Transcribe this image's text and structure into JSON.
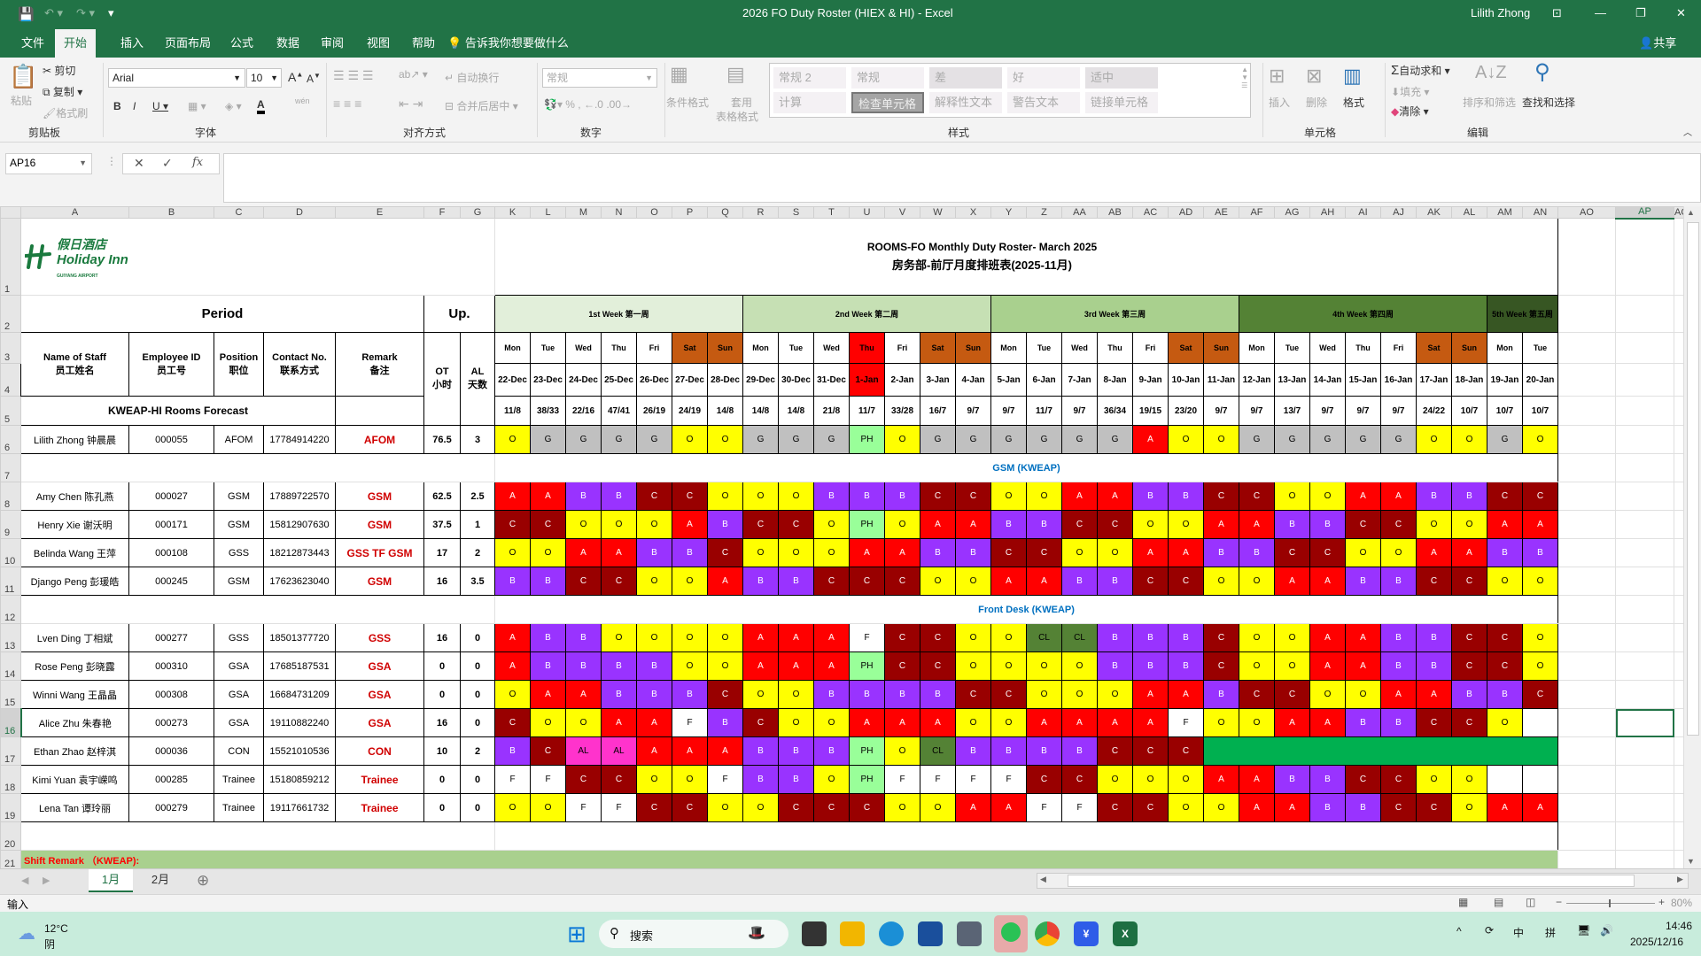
{
  "app": {
    "title": "2026 FO Duty Roster (HIEX & HI)  -  Excel",
    "user": "Lilith Zhong",
    "share": "共享",
    "tell_me": "告诉我你想要做什么",
    "tabs": [
      "文件",
      "开始",
      "插入",
      "页面布局",
      "公式",
      "数据",
      "审阅",
      "视图",
      "帮助"
    ],
    "active_tab": "开始"
  },
  "ribbon": {
    "clipboard": {
      "paste": "粘贴",
      "cut": "剪切",
      "copy": "复制",
      "format_painter": "格式刷",
      "label": "剪贴板"
    },
    "font": {
      "name": "Arial",
      "size": "10",
      "label": "字体",
      "phonetic": "wén"
    },
    "alignment": {
      "wrap": "自动换行",
      "merge": "合并后居中",
      "label": "对齐方式"
    },
    "number": {
      "format": "常规",
      "label": "数字"
    },
    "styles": {
      "conditional": "条件格式",
      "table_1": "套用",
      "table_2": "表格格式",
      "label": "样式",
      "gallery": [
        "常规 2",
        "常规",
        "差",
        "好",
        "适中",
        "计算",
        "检查单元格",
        "解释性文本",
        "警告文本",
        "链接单元格"
      ]
    },
    "cells": {
      "insert": "插入",
      "delete": "删除",
      "format": "格式",
      "label": "单元格"
    },
    "editing": {
      "autosum": "自动求和",
      "fill": "填充",
      "clear": "清除",
      "sort": "排序和筛选",
      "find": "查找和选择",
      "label": "编辑"
    }
  },
  "formula": {
    "name_box": "AP16",
    "value": "",
    "fx": "fx"
  },
  "columns": [
    "A",
    "B",
    "C",
    "D",
    "E",
    "F",
    "G",
    "K",
    "L",
    "M",
    "N",
    "O",
    "P",
    "Q",
    "R",
    "S",
    "T",
    "U",
    "V",
    "W",
    "X",
    "Y",
    "Z",
    "AA",
    "AB",
    "AC",
    "AD",
    "AE",
    "AF",
    "AG",
    "AH",
    "AI",
    "AJ",
    "AK",
    "AL",
    "AM",
    "AN",
    "AO",
    "AP",
    "AC"
  ],
  "selected_column": "AP",
  "selected_row": 16,
  "row_headers": [
    "1",
    "2",
    "3",
    "4",
    "5",
    "6",
    "7",
    "8",
    "9",
    "10",
    "11",
    "12",
    "13",
    "14",
    "15",
    "16",
    "17",
    "18",
    "19",
    "20",
    "21"
  ],
  "sheet": {
    "logo": {
      "cn": "假日酒店",
      "en": "Holiday Inn",
      "sub": "GUIYANG AIRPORT",
      "color": "#1a7a3e"
    },
    "title_1": "ROOMS-FO Monthly Duty Roster- March 2025",
    "title_2": "房务部-前厅月度排班表(2025-11月)",
    "period": "Period",
    "up": "Up.",
    "headers": {
      "name_en": "Name of Staff",
      "name_cn": "员工姓名",
      "id_en": "Employee ID",
      "id_cn": "员工号",
      "pos_en": "Position",
      "pos_cn": "职位",
      "contact_en": "Contact No.",
      "contact_cn": "联系方式",
      "remark_en": "Remark",
      "remark_cn": "备注",
      "ot_en": "OT",
      "ot_cn": "小时",
      "al_en": "AL",
      "al_cn": "天数"
    },
    "forecast_label": "KWEAP-HI Rooms Forecast",
    "weeks": [
      {
        "label": "1st Week 第一周",
        "days": 7,
        "color": "#e2efda"
      },
      {
        "label": "2nd Week 第二周",
        "days": 7,
        "color": "#c6e0b4"
      },
      {
        "label": "3rd Week 第三周",
        "days": 7,
        "color": "#a9d08e"
      },
      {
        "label": "4th Week 第四周",
        "days": 7,
        "color": "#548235"
      },
      {
        "label": "5th Week 第五周",
        "days": 2,
        "color": "#375623"
      }
    ],
    "days": [
      "Mon",
      "Tue",
      "Wed",
      "Thu",
      "Fri",
      "Sat",
      "Sun",
      "Mon",
      "Tue",
      "Wed",
      "Thu",
      "Fri",
      "Sat",
      "Sun",
      "Mon",
      "Tue",
      "Wed",
      "Thu",
      "Fri",
      "Sat",
      "Sun",
      "Mon",
      "Tue",
      "Wed",
      "Thu",
      "Fri",
      "Sat",
      "Sun",
      "Mon",
      "Tue"
    ],
    "dates": [
      "22-Dec",
      "23-Dec",
      "24-Dec",
      "25-Dec",
      "26-Dec",
      "27-Dec",
      "28-Dec",
      "29-Dec",
      "30-Dec",
      "31-Dec",
      "1-Jan",
      "2-Jan",
      "3-Jan",
      "4-Jan",
      "5-Jan",
      "6-Jan",
      "7-Jan",
      "8-Jan",
      "9-Jan",
      "10-Jan",
      "11-Jan",
      "12-Jan",
      "13-Jan",
      "14-Jan",
      "15-Jan",
      "16-Jan",
      "17-Jan",
      "18-Jan",
      "19-Jan",
      "20-Jan"
    ],
    "holiday_date": "1-Jan",
    "weekend_color": "#c55a11",
    "holiday_color": "#ff0000",
    "forecast": [
      "11/8",
      "38/33",
      "22/16",
      "47/41",
      "26/19",
      "24/19",
      "14/8",
      "14/8",
      "14/8",
      "21/8",
      "11/7",
      "33/28",
      "16/7",
      "9/7",
      "9/7",
      "11/7",
      "9/7",
      "36/34",
      "19/15",
      "23/20",
      "9/7",
      "9/7",
      "13/7",
      "9/7",
      "9/7",
      "9/7",
      "24/22",
      "10/7",
      "10/7",
      "10/7"
    ],
    "sections": {
      "gsm": "GSM (KWEAP)",
      "front_desk": "Front Desk (KWEAP)"
    },
    "staff": [
      {
        "name": "Lilith Zhong 钟晨晨",
        "id": "000055",
        "pos": "AFOM",
        "contact": "17784914220",
        "remark": "AFOM",
        "ot": "76.5",
        "al": "3",
        "shifts": [
          "O",
          "G",
          "G",
          "G",
          "G",
          "O",
          "O",
          "G",
          "G",
          "G",
          "PH",
          "O",
          "G",
          "G",
          "G",
          "G",
          "G",
          "G",
          "A",
          "O",
          "O",
          "G",
          "G",
          "G",
          "G",
          "G",
          "O",
          "O",
          "G",
          "O"
        ]
      },
      {
        "name": "Amy Chen 陈孔燕",
        "id": "000027",
        "pos": "GSM",
        "contact": "17889722570",
        "remark": "GSM",
        "ot": "62.5",
        "al": "2.5",
        "shifts": [
          "A",
          "A",
          "B",
          "B",
          "C",
          "C",
          "O",
          "O",
          "O",
          "B",
          "B",
          "B",
          "C",
          "C",
          "O",
          "O",
          "A",
          "A",
          "B",
          "B",
          "C",
          "C",
          "O",
          "O",
          "A",
          "A",
          "B",
          "B",
          "C",
          "C"
        ]
      },
      {
        "name": "Henry Xie 谢沃明",
        "id": "000171",
        "pos": "GSM",
        "contact": "15812907630",
        "remark": "GSM",
        "ot": "37.5",
        "al": "1",
        "shifts": [
          "C",
          "C",
          "O",
          "O",
          "O",
          "A",
          "B",
          "C",
          "C",
          "O",
          "PH",
          "O",
          "A",
          "A",
          "B",
          "B",
          "C",
          "C",
          "O",
          "O",
          "A",
          "A",
          "B",
          "B",
          "C",
          "C",
          "O",
          "O",
          "A",
          "A"
        ]
      },
      {
        "name": "Belinda Wang 王萍",
        "id": "000108",
        "pos": "GSS",
        "contact": "18212873443",
        "remark": "GSS TF GSM",
        "ot": "17",
        "al": "2",
        "shifts": [
          "O",
          "O",
          "A",
          "A",
          "B",
          "B",
          "C",
          "O",
          "O",
          "O",
          "A",
          "A",
          "B",
          "B",
          "C",
          "C",
          "O",
          "O",
          "A",
          "A",
          "B",
          "B",
          "C",
          "C",
          "O",
          "O",
          "A",
          "A",
          "B",
          "B"
        ]
      },
      {
        "name": "Django Peng 彭瑗皓",
        "id": "000245",
        "pos": "GSM",
        "contact": "17623623040",
        "remark": "GSM",
        "ot": "16",
        "al": "3.5",
        "shifts": [
          "B",
          "B",
          "C",
          "C",
          "O",
          "O",
          "A",
          "B",
          "B",
          "C",
          "C",
          "C",
          "O",
          "O",
          "A",
          "A",
          "B",
          "B",
          "C",
          "C",
          "O",
          "O",
          "A",
          "A",
          "B",
          "B",
          "C",
          "C",
          "O",
          "O"
        ]
      },
      {
        "name": "Lven Ding 丁相斌",
        "id": "000277",
        "pos": "GSS",
        "contact": "18501377720",
        "remark": "GSS",
        "ot": "16",
        "al": "0",
        "shifts": [
          "A",
          "B",
          "B",
          "O",
          "O",
          "O",
          "O",
          "A",
          "A",
          "A",
          "F",
          "C",
          "C",
          "O",
          "O",
          "CL",
          "CL",
          "B",
          "B",
          "B",
          "C",
          "O",
          "O",
          "A",
          "A",
          "B",
          "B",
          "C",
          "C",
          "O"
        ]
      },
      {
        "name": "Rose Peng 彭晓露",
        "id": "000310",
        "pos": "GSA",
        "contact": "17685187531",
        "remark": "GSA",
        "ot": "0",
        "al": "0",
        "shifts": [
          "A",
          "B",
          "B",
          "B",
          "B",
          "O",
          "O",
          "A",
          "A",
          "A",
          "PH",
          "C",
          "C",
          "O",
          "O",
          "O",
          "O",
          "B",
          "B",
          "B",
          "C",
          "O",
          "O",
          "A",
          "A",
          "B",
          "B",
          "C",
          "C",
          "O"
        ]
      },
      {
        "name": "Winni Wang 王晶晶",
        "id": "000308",
        "pos": "GSA",
        "contact": "16684731209",
        "remark": "GSA",
        "ot": "0",
        "al": "0",
        "shifts": [
          "O",
          "A",
          "A",
          "B",
          "B",
          "B",
          "C",
          "O",
          "O",
          "B",
          "B",
          "B",
          "B",
          "C",
          "C",
          "O",
          "O",
          "O",
          "A",
          "A",
          "B",
          "C",
          "C",
          "O",
          "O",
          "A",
          "A",
          "B",
          "B",
          "C"
        ]
      },
      {
        "name": "Alice Zhu 朱春艳",
        "id": "000273",
        "pos": "GSA",
        "contact": "19110882240",
        "remark": "GSA",
        "ot": "16",
        "al": "0",
        "shifts": [
          "C",
          "O",
          "O",
          "A",
          "A",
          "F",
          "B",
          "C",
          "O",
          "O",
          "A",
          "A",
          "A",
          "O",
          "O",
          "A",
          "A",
          "A",
          "A",
          "F",
          "O",
          "O",
          "A",
          "A",
          "B",
          "B",
          "C",
          "C",
          "O",
          ""
        ]
      },
      {
        "name": "Ethan Zhao 赵梓淇",
        "id": "000036",
        "pos": "CON",
        "contact": "15521010536",
        "remark": "CON",
        "ot": "10",
        "al": "2",
        "shifts": [
          "B",
          "C",
          "AL",
          "AL",
          "A",
          "A",
          "A",
          "B",
          "B",
          "B",
          "PH",
          "O",
          "CL",
          "B",
          "B",
          "B",
          "B",
          "C",
          "C",
          "C"
        ],
        "merged_fill": {
          "from": "11-Jan",
          "to": "20-Jan",
          "color": "#00b050"
        }
      },
      {
        "name": "Kimi Yuan 袁宇嵘鸣",
        "id": "000285",
        "pos": "Trainee",
        "contact": "15180859212",
        "remark": "Trainee",
        "ot": "0",
        "al": "0",
        "shifts": [
          "F",
          "F",
          "C",
          "C",
          "O",
          "O",
          "F",
          "B",
          "B",
          "O",
          "PH",
          "F",
          "F",
          "F",
          "F",
          "C",
          "C",
          "O",
          "O",
          "O",
          "A",
          "A",
          "B",
          "B",
          "C",
          "C",
          "O",
          "O",
          "",
          ""
        ]
      },
      {
        "name": "Lena Tan 谭玲丽",
        "id": "000279",
        "pos": "Trainee",
        "contact": "19117661732",
        "remark": "Trainee",
        "ot": "0",
        "al": "0",
        "shifts": [
          "O",
          "O",
          "F",
          "F",
          "C",
          "C",
          "O",
          "O",
          "C",
          "C",
          "C",
          "O",
          "O",
          "A",
          "A",
          "F",
          "F",
          "C",
          "C",
          "O",
          "O",
          "A",
          "A",
          "B",
          "B",
          "C",
          "C",
          "O",
          "A",
          "A"
        ]
      }
    ],
    "shift_remark": "Shift Remark （KWEAP):"
  },
  "shift_colors": {
    "A": {
      "bg": "#ff0000",
      "fg": "#ffffff"
    },
    "B": {
      "bg": "#9933ff",
      "fg": "#ffffff"
    },
    "C": {
      "bg": "#990000",
      "fg": "#ffffff"
    },
    "O": {
      "bg": "#ffff00",
      "fg": "#000000"
    },
    "G": {
      "bg": "#c0c0c0",
      "fg": "#000000"
    },
    "PH": {
      "bg": "#99ff99",
      "fg": "#000000"
    },
    "F": {
      "bg": "#ffffff",
      "fg": "#000000"
    },
    "AL": {
      "bg": "#ff33cc",
      "fg": "#000000"
    },
    "CL": {
      "bg": "#548235",
      "fg": "#000000"
    }
  },
  "sheet_tabs": [
    "1月",
    "2月"
  ],
  "active_sheet": "1月",
  "status": {
    "mode": "输入",
    "zoom": "80%"
  },
  "taskbar": {
    "temp": "12°C",
    "weather": "阴",
    "search": "搜索",
    "ime_1": "中",
    "ime_2": "拼",
    "time": "14:46",
    "date": "2025/12/16"
  }
}
